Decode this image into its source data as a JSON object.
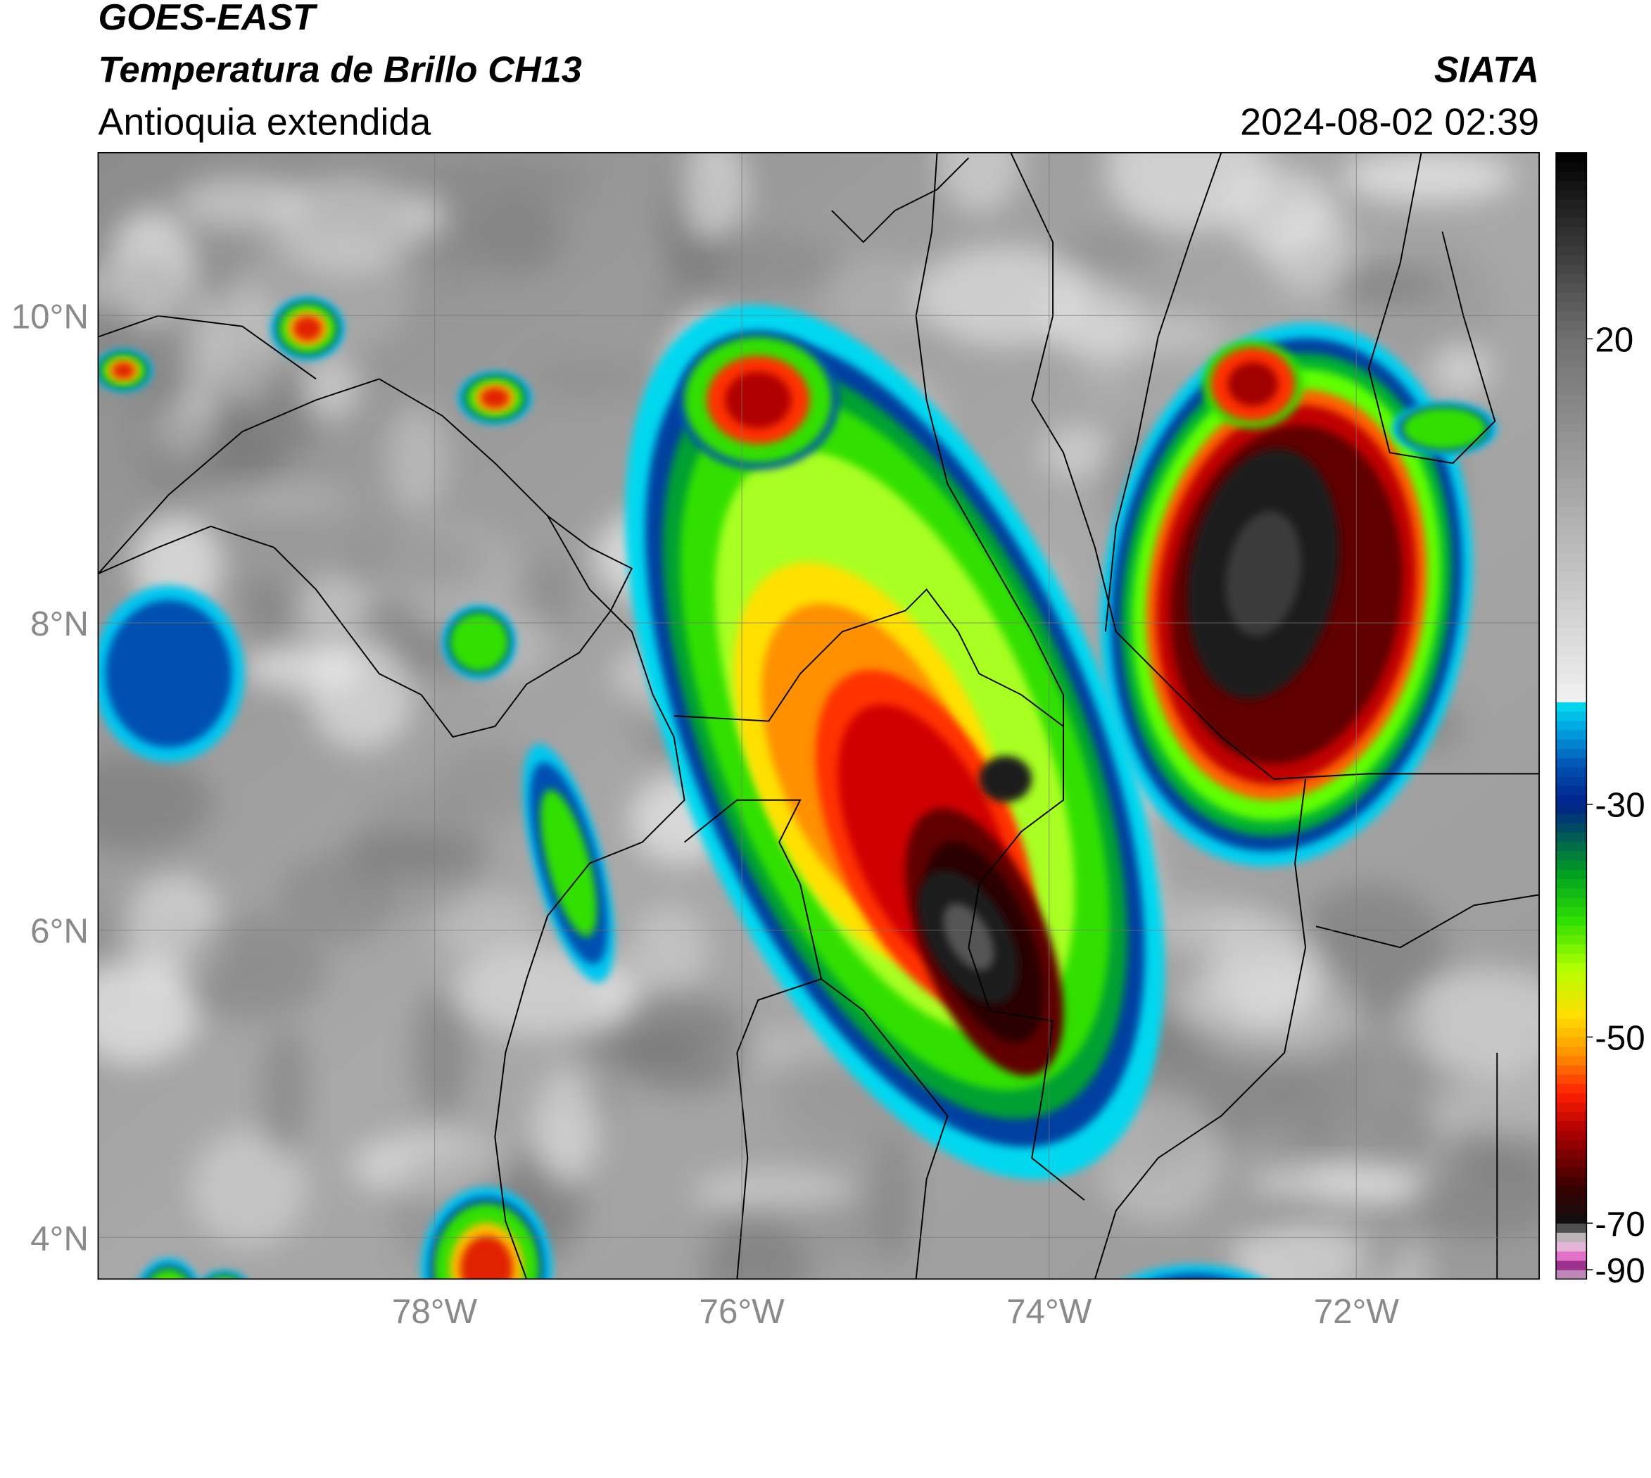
{
  "header": {
    "title": "GOES-EAST",
    "subtitle": "Temperatura de Brillo CH13",
    "region": "Antioquia extendida",
    "source": "SIATA",
    "datetime": "2024-08-02 02:39"
  },
  "map": {
    "lon_lim": [
      -80.19,
      -70.81
    ],
    "lat_lim": [
      3.73,
      11.06
    ],
    "grid": true,
    "lon_ticks": [
      {
        "value": -78,
        "label": "78°W"
      },
      {
        "value": -76,
        "label": "76°W"
      },
      {
        "value": -74,
        "label": "74°W"
      },
      {
        "value": -72,
        "label": "72°W"
      }
    ],
    "lat_ticks": [
      {
        "value": 4,
        "label": "4°N"
      },
      {
        "value": 6,
        "label": "6°N"
      },
      {
        "value": 8,
        "label": "8°N"
      },
      {
        "value": 10,
        "label": "10°N"
      }
    ]
  },
  "colorbar": {
    "ticks": [
      -90,
      -70,
      -50,
      -30,
      20
    ],
    "levels": [
      {
        "from": -94,
        "to": -90,
        "step": 4
      },
      {
        "from": -90,
        "to": -70,
        "step": 4
      },
      {
        "from": -70,
        "to": -50,
        "step": 1
      },
      {
        "from": -50,
        "to": -30,
        "step": 0.8
      },
      {
        "from": -30,
        "to": 20,
        "step": 1
      },
      {
        "from": 20,
        "to": 40,
        "step": 1
      }
    ],
    "colormap": [
      {
        "value": -94,
        "color": "#ffffff"
      },
      {
        "value": -90,
        "color": "#7a1070"
      },
      {
        "value": -84,
        "color": "#e070c8"
      },
      {
        "value": -78,
        "color": "#e8d8e0"
      },
      {
        "value": -74,
        "color": "#909090"
      },
      {
        "value": -70,
        "color": "#101010"
      },
      {
        "value": -66,
        "color": "#3a0000"
      },
      {
        "value": -60,
        "color": "#b00000"
      },
      {
        "value": -56,
        "color": "#ff2000"
      },
      {
        "value": -52,
        "color": "#ff8c00"
      },
      {
        "value": -48,
        "color": "#ffe000"
      },
      {
        "value": -44,
        "color": "#b0ff00"
      },
      {
        "value": -40,
        "color": "#30e000"
      },
      {
        "value": -36,
        "color": "#00a020"
      },
      {
        "value": -33,
        "color": "#006050"
      },
      {
        "value": -30,
        "color": "#00208a"
      },
      {
        "value": -26,
        "color": "#0050b0"
      },
      {
        "value": -22,
        "color": "#00a0e0"
      },
      {
        "value": -19,
        "color": "#00e0f0"
      },
      {
        "value": -18.5,
        "color": "#f0f0f0"
      },
      {
        "value": 20,
        "color": "#707070"
      },
      {
        "value": 40,
        "color": "#000000"
      }
    ]
  }
}
